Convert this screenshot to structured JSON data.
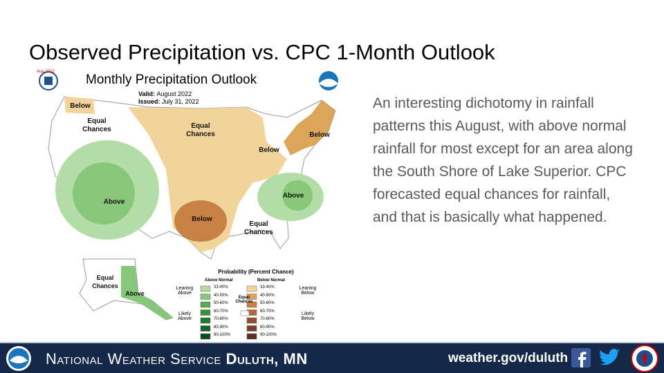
{
  "title": "Observed Precipitation vs. CPC 1-Month Outlook",
  "map": {
    "title": "Monthly Precipitation Outlook",
    "badge": "Aug 2022",
    "valid_label": "Valid:",
    "valid": "August 2022",
    "issued_label": "Issued:",
    "issued": "July 31, 2022",
    "regions": [
      {
        "label": "Below"
      },
      {
        "label": "Equal Chances"
      },
      {
        "label": "Equal Chances"
      },
      {
        "label": "Below"
      },
      {
        "label": "Below"
      },
      {
        "label": "Above"
      },
      {
        "label": "Below"
      },
      {
        "label": "Above"
      },
      {
        "label": "Equal Chances"
      },
      {
        "label": "Equal Chances"
      },
      {
        "label": "Above"
      }
    ],
    "legend": {
      "title": "Probability (Percent Chance)",
      "above_header": "Above Normal",
      "below_header": "Below Normal",
      "equal": "Equal Chances",
      "leaning_above": "Leaning Above",
      "likely_above": "Likely Above",
      "leaning_below": "Leaning Below",
      "likely_below": "Likely Below",
      "above_bins": [
        "33-40%",
        "40-50%",
        "50-60%",
        "60-70%",
        "70-80%",
        "80-90%",
        "90-100%"
      ],
      "below_bins": [
        "33-40%",
        "40-50%",
        "50-60%",
        "60-70%",
        "70-80%",
        "80-90%",
        "90-100%"
      ],
      "above_colors": [
        "#b3dca6",
        "#86c77a",
        "#55ab4e",
        "#33913a",
        "#1f7a2e",
        "#176327",
        "#0f4a1e"
      ],
      "below_colors": [
        "#f0d49a",
        "#dba65a",
        "#c98045",
        "#b0653a",
        "#93502f",
        "#774026",
        "#5c301c"
      ]
    }
  },
  "text": "An interesting dichotomy in rainfall patterns this August, with above normal rainfall for most except for an area along the South Shore of Lake Superior. CPC forecasted equal chances for rainfall, and that is basically what happened.",
  "footer": {
    "agency": "National Weather Service",
    "office": "Duluth, MN",
    "url": "weather.gov/duluth"
  }
}
